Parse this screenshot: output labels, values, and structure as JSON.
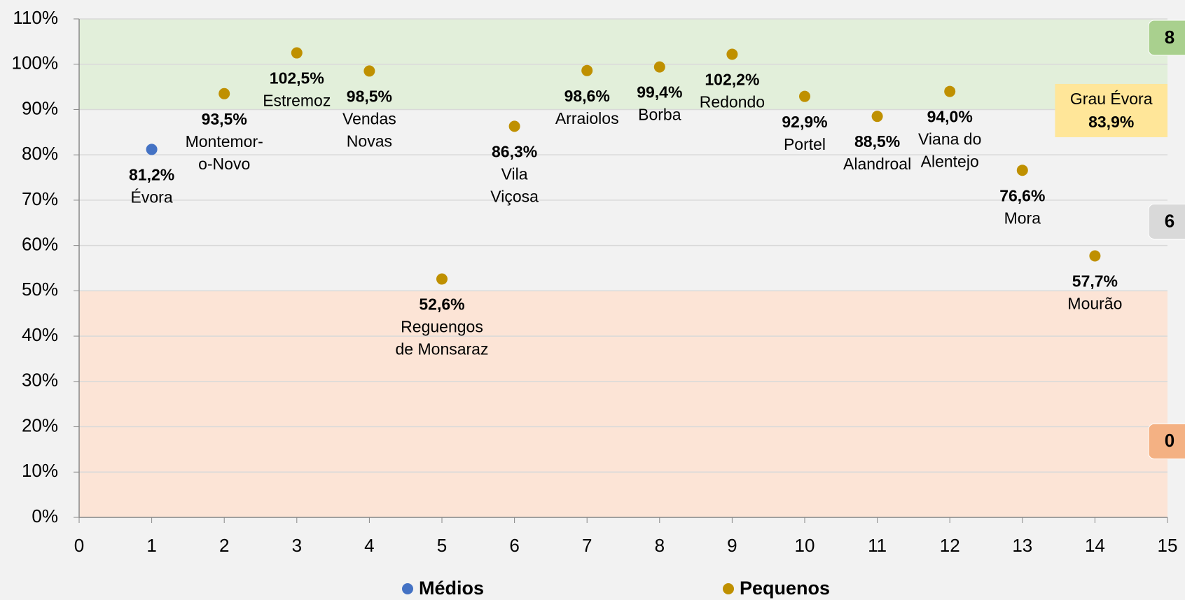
{
  "chart_data": {
    "type": "scatter",
    "series": [
      {
        "name": "Médios",
        "color": "#4472c4",
        "x": [
          1
        ],
        "values": [
          81.2
        ],
        "value_labels": [
          "81,2%"
        ],
        "point_labels": [
          [
            "Évora"
          ]
        ]
      },
      {
        "name": "Pequenos",
        "color": "#bf9000",
        "x": [
          2,
          3,
          4,
          5,
          6,
          7,
          8,
          9,
          10,
          11,
          12,
          13,
          14
        ],
        "values": [
          93.5,
          102.5,
          98.5,
          52.6,
          86.3,
          98.6,
          99.4,
          102.2,
          92.9,
          88.5,
          94.0,
          76.6,
          57.7
        ],
        "value_labels": [
          "93,5%",
          "102,5%",
          "98,5%",
          "52,6%",
          "86,3%",
          "98,6%",
          "99,4%",
          "102,2%",
          "92,9%",
          "88,5%",
          "94,0%",
          "76,6%",
          "57,7%"
        ],
        "point_labels": [
          [
            "Montemor-",
            "o-Novo"
          ],
          [
            "Estremoz"
          ],
          [
            "Vendas",
            "Novas"
          ],
          [
            "Reguengos",
            "de Monsaraz"
          ],
          [
            "Vila",
            "Viçosa"
          ],
          [
            "Arraiolos"
          ],
          [
            "Borba"
          ],
          [
            "Redondo"
          ],
          [
            "Portel"
          ],
          [
            "Alandroal"
          ],
          [
            "Viana do",
            "Alentejo"
          ],
          [
            "Mora"
          ],
          [
            "Mourão"
          ]
        ]
      }
    ],
    "xlim": [
      0,
      15
    ],
    "xticks": [
      0,
      1,
      2,
      3,
      4,
      5,
      6,
      7,
      8,
      9,
      10,
      11,
      12,
      13,
      14,
      15
    ],
    "ylim": [
      0,
      110
    ],
    "yticks": [
      {
        "value": 0,
        "label": "0%"
      },
      {
        "value": 10,
        "label": "10%"
      },
      {
        "value": 20,
        "label": "20%"
      },
      {
        "value": 30,
        "label": "30%"
      },
      {
        "value": 40,
        "label": "40%"
      },
      {
        "value": 50,
        "label": "50%"
      },
      {
        "value": 60,
        "label": "60%"
      },
      {
        "value": 70,
        "label": "70%"
      },
      {
        "value": 80,
        "label": "80%"
      },
      {
        "value": 90,
        "label": "90%"
      },
      {
        "value": 100,
        "label": "100%"
      },
      {
        "value": 110,
        "label": "110%"
      }
    ],
    "grid": true,
    "bands": [
      {
        "from": 90,
        "to": 110,
        "color": "#e2efda",
        "count": 8,
        "badge_color": "#a9d08e"
      },
      {
        "from": 50,
        "to": 90,
        "count": 6,
        "badge_color": "#d9d9d9"
      },
      {
        "from": 0,
        "to": 50,
        "color": "#fce4d6",
        "count": 0,
        "badge_color": "#f4b183"
      }
    ],
    "annotation": {
      "text": "Grau Évora",
      "value": 83.9,
      "value_label": "83,9%",
      "color": "#ffe699"
    },
    "legend": "bottom"
  }
}
